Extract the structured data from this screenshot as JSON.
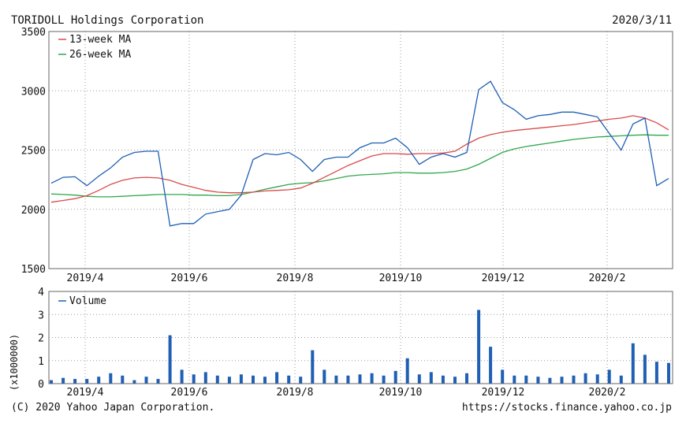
{
  "header": {
    "company": "TORIDOLL Holdings Corporation",
    "date": "2020/3/11"
  },
  "footer": {
    "copyright": "(C) 2020 Yahoo Japan Corporation.",
    "url": "https://stocks.finance.yahoo.co.jp"
  },
  "colors": {
    "price": "#1f5fb4",
    "ma13": "#d94a4a",
    "ma26": "#2fa84a",
    "volume": "#1f5fb4",
    "grid": "#9a9a9a",
    "frame": "#666666"
  },
  "chart_data": [
    {
      "type": "line",
      "title": "",
      "xlabel": "",
      "ylabel": "",
      "x_tick_labels": [
        "2019/4",
        "2019/6",
        "2019/8",
        "2019/10",
        "2019/12",
        "2020/2"
      ],
      "y_ticks": [
        1500,
        2000,
        2500,
        3000,
        3500
      ],
      "ylim": [
        1500,
        3500
      ],
      "grid": true,
      "legend": {
        "placement": "top-left",
        "entries": [
          "13-week MA",
          "26-week MA"
        ]
      },
      "x": [
        "2019/3/11",
        "2019/3/18",
        "2019/3/25",
        "2019/4/1",
        "2019/4/8",
        "2019/4/15",
        "2019/4/22",
        "2019/4/29",
        "2019/5/6",
        "2019/5/13",
        "2019/5/20",
        "2019/5/27",
        "2019/6/3",
        "2019/6/10",
        "2019/6/17",
        "2019/6/24",
        "2019/7/1",
        "2019/7/8",
        "2019/7/15",
        "2019/7/22",
        "2019/7/29",
        "2019/8/5",
        "2019/8/12",
        "2019/8/19",
        "2019/8/26",
        "2019/9/2",
        "2019/9/9",
        "2019/9/16",
        "2019/9/23",
        "2019/9/30",
        "2019/10/7",
        "2019/10/14",
        "2019/10/21",
        "2019/10/28",
        "2019/11/4",
        "2019/11/11",
        "2019/11/18",
        "2019/11/25",
        "2019/12/2",
        "2019/12/9",
        "2019/12/16",
        "2019/12/23",
        "2019/12/30",
        "2020/1/6",
        "2020/1/13",
        "2020/1/20",
        "2020/1/27",
        "2020/2/3",
        "2020/2/10",
        "2020/2/17",
        "2020/2/24",
        "2020/3/2",
        "2020/3/9"
      ],
      "series": [
        {
          "name": "",
          "values": [
            2220,
            2270,
            2275,
            2200,
            2280,
            2350,
            2440,
            2480,
            2490,
            2490,
            1860,
            1880,
            1880,
            1960,
            1980,
            2000,
            2120,
            2420,
            2470,
            2460,
            2480,
            2420,
            2320,
            2420,
            2440,
            2440,
            2520,
            2560,
            2560,
            2600,
            2520,
            2380,
            2440,
            2470,
            2440,
            2480,
            3010,
            3080,
            2900,
            2840,
            2760,
            2790,
            2800,
            2820,
            2820,
            2800,
            2780,
            2640,
            2500,
            2720,
            2770,
            2200,
            2260
          ]
        },
        {
          "name": "13-week MA",
          "values": [
            2060,
            2075,
            2090,
            2115,
            2160,
            2210,
            2245,
            2265,
            2270,
            2265,
            2245,
            2210,
            2185,
            2160,
            2145,
            2140,
            2140,
            2145,
            2155,
            2160,
            2165,
            2180,
            2220,
            2270,
            2320,
            2370,
            2410,
            2450,
            2470,
            2470,
            2465,
            2470,
            2470,
            2475,
            2490,
            2550,
            2600,
            2630,
            2650,
            2665,
            2675,
            2685,
            2695,
            2705,
            2715,
            2730,
            2745,
            2760,
            2770,
            2790,
            2770,
            2730,
            2670
          ]
        },
        {
          "name": "26-week MA",
          "values": [
            2130,
            2125,
            2120,
            2110,
            2105,
            2105,
            2110,
            2115,
            2120,
            2125,
            2125,
            2125,
            2120,
            2120,
            2115,
            2115,
            2125,
            2145,
            2170,
            2190,
            2210,
            2220,
            2225,
            2240,
            2260,
            2280,
            2290,
            2295,
            2300,
            2310,
            2310,
            2305,
            2305,
            2310,
            2320,
            2340,
            2380,
            2430,
            2480,
            2510,
            2530,
            2545,
            2560,
            2575,
            2590,
            2600,
            2610,
            2615,
            2620,
            2625,
            2628,
            2625,
            2625
          ]
        }
      ]
    },
    {
      "type": "bar",
      "title": "",
      "ylabel": "(x1000000)",
      "y_ticks": [
        0,
        1,
        2,
        3,
        4
      ],
      "ylim": [
        0,
        4
      ],
      "grid": true,
      "legend": {
        "placement": "top-left",
        "entries": [
          "Volume"
        ]
      },
      "x_tick_labels": [
        "2019/4",
        "2019/6",
        "2019/8",
        "2019/10",
        "2019/12",
        "2020/2"
      ],
      "series": [
        {
          "name": "Volume",
          "values": [
            0.15,
            0.25,
            0.2,
            0.2,
            0.3,
            0.45,
            0.35,
            0.15,
            0.3,
            0.2,
            2.1,
            0.6,
            0.4,
            0.5,
            0.35,
            0.3,
            0.4,
            0.35,
            0.3,
            0.5,
            0.35,
            0.3,
            1.45,
            0.6,
            0.35,
            0.35,
            0.4,
            0.45,
            0.35,
            0.55,
            1.1,
            0.4,
            0.5,
            0.35,
            0.3,
            0.45,
            3.2,
            1.6,
            0.6,
            0.35,
            0.35,
            0.3,
            0.25,
            0.3,
            0.35,
            0.45,
            0.4,
            0.6,
            0.35,
            1.75,
            1.25,
            0.95,
            0.9
          ]
        }
      ]
    }
  ]
}
